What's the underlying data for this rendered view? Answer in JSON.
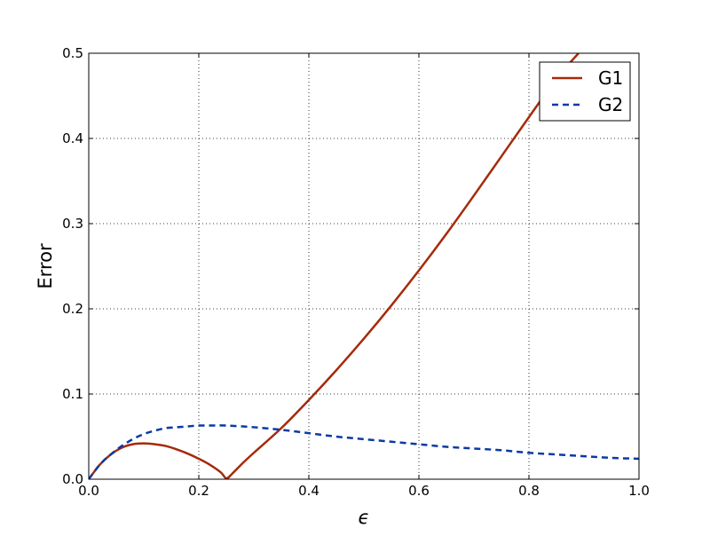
{
  "chart_data": {
    "type": "line",
    "title": "",
    "xlabel": "ϵ",
    "ylabel": "Error",
    "xlim": [
      0.0,
      1.0
    ],
    "ylim": [
      0.0,
      0.5
    ],
    "xticks": [
      0.0,
      0.2,
      0.4,
      0.6,
      0.8,
      1.0
    ],
    "yticks": [
      0.0,
      0.1,
      0.2,
      0.3,
      0.4,
      0.5
    ],
    "xtick_labels": [
      "0.0",
      "0.2",
      "0.4",
      "0.6",
      "0.8",
      "1.0"
    ],
    "ytick_labels": [
      "0.0",
      "0.1",
      "0.2",
      "0.3",
      "0.4",
      "0.5"
    ],
    "grid": true,
    "legend_position": "top-right",
    "series": [
      {
        "name": "G1",
        "color": "#a52a0a",
        "style": "solid",
        "x": [
          0.0,
          0.02,
          0.04,
          0.06,
          0.08,
          0.1,
          0.12,
          0.14,
          0.16,
          0.18,
          0.2,
          0.22,
          0.24,
          0.25,
          0.26,
          0.28,
          0.3,
          0.35,
          0.4,
          0.45,
          0.5,
          0.55,
          0.6,
          0.65,
          0.7,
          0.75,
          0.8,
          0.85,
          0.89
        ],
        "y": [
          0.0,
          0.017,
          0.029,
          0.037,
          0.041,
          0.042,
          0.041,
          0.039,
          0.035,
          0.03,
          0.024,
          0.017,
          0.008,
          0.001,
          0.006,
          0.019,
          0.031,
          0.06,
          0.093,
          0.128,
          0.165,
          0.204,
          0.245,
          0.288,
          0.333,
          0.379,
          0.425,
          0.47,
          0.5
        ]
      },
      {
        "name": "G2",
        "color": "#0a3aa5",
        "style": "dashed",
        "x": [
          0.0,
          0.02,
          0.04,
          0.06,
          0.08,
          0.1,
          0.12,
          0.14,
          0.16,
          0.18,
          0.2,
          0.22,
          0.25,
          0.3,
          0.35,
          0.4,
          0.45,
          0.5,
          0.55,
          0.6,
          0.65,
          0.7,
          0.75,
          0.8,
          0.85,
          0.9,
          0.95,
          1.0
        ],
        "y": [
          0.0,
          0.017,
          0.029,
          0.039,
          0.047,
          0.053,
          0.057,
          0.06,
          0.061,
          0.062,
          0.063,
          0.063,
          0.063,
          0.061,
          0.058,
          0.054,
          0.05,
          0.047,
          0.044,
          0.041,
          0.038,
          0.036,
          0.034,
          0.031,
          0.029,
          0.027,
          0.025,
          0.024
        ]
      }
    ]
  }
}
